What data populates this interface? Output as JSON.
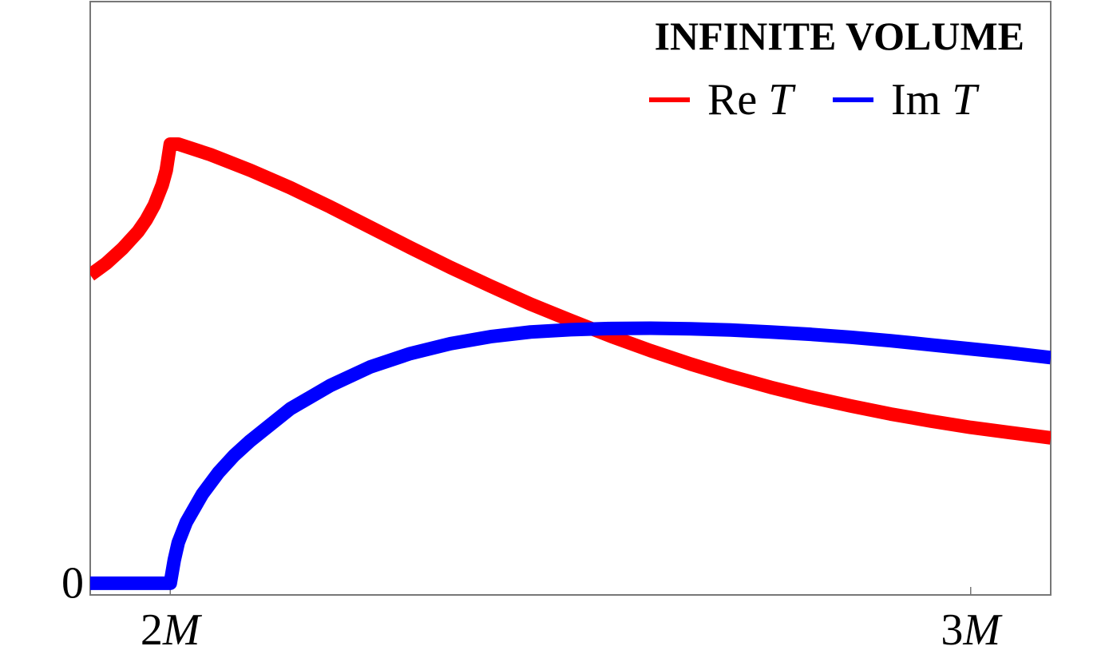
{
  "chart_data": {
    "type": "line",
    "title": "INFINITE VOLUME",
    "xlabel": "",
    "ylabel": "",
    "xlim": [
      1.9,
      3.1
    ],
    "ylim": [
      -0.02,
      1.0
    ],
    "grid": false,
    "legend_position": "top-right",
    "x_ticks": [
      {
        "value": 2,
        "num": "2",
        "var": "M"
      },
      {
        "value": 3,
        "num": "3",
        "var": "M"
      }
    ],
    "y_ticks": [
      {
        "value": 0,
        "label": "0"
      }
    ],
    "series": [
      {
        "name_prefix": "Re ",
        "name_var": "T",
        "color": "#ff0000",
        "x": [
          1.9,
          1.92,
          1.94,
          1.96,
          1.97,
          1.98,
          1.99,
          1.995,
          2.0,
          2.01,
          2.05,
          2.1,
          2.15,
          2.2,
          2.25,
          2.3,
          2.35,
          2.4,
          2.45,
          2.5,
          2.55,
          2.6,
          2.65,
          2.7,
          2.75,
          2.8,
          2.85,
          2.9,
          2.95,
          3.0,
          3.05,
          3.1
        ],
        "y": [
          0.53,
          0.55,
          0.575,
          0.605,
          0.625,
          0.65,
          0.685,
          0.71,
          0.755,
          0.755,
          0.737,
          0.71,
          0.68,
          0.647,
          0.612,
          0.577,
          0.543,
          0.511,
          0.48,
          0.452,
          0.425,
          0.4,
          0.377,
          0.356,
          0.337,
          0.32,
          0.305,
          0.291,
          0.279,
          0.268,
          0.259,
          0.25
        ]
      },
      {
        "name_prefix": "Im ",
        "name_var": "T",
        "color": "#0000ff",
        "x": [
          1.9,
          1.95,
          1.99,
          2.0,
          2.005,
          2.01,
          2.02,
          2.04,
          2.06,
          2.08,
          2.1,
          2.15,
          2.2,
          2.25,
          2.3,
          2.35,
          2.4,
          2.45,
          2.5,
          2.55,
          2.6,
          2.65,
          2.7,
          2.75,
          2.8,
          2.85,
          2.9,
          2.95,
          3.0,
          3.05,
          3.1
        ],
        "y": [
          0.0,
          0.0,
          0.0,
          0.0,
          0.04,
          0.07,
          0.105,
          0.153,
          0.19,
          0.22,
          0.245,
          0.3,
          0.34,
          0.372,
          0.395,
          0.412,
          0.424,
          0.432,
          0.436,
          0.438,
          0.4385,
          0.4375,
          0.4355,
          0.432,
          0.428,
          0.423,
          0.417,
          0.41,
          0.403,
          0.396,
          0.388
        ]
      }
    ]
  }
}
